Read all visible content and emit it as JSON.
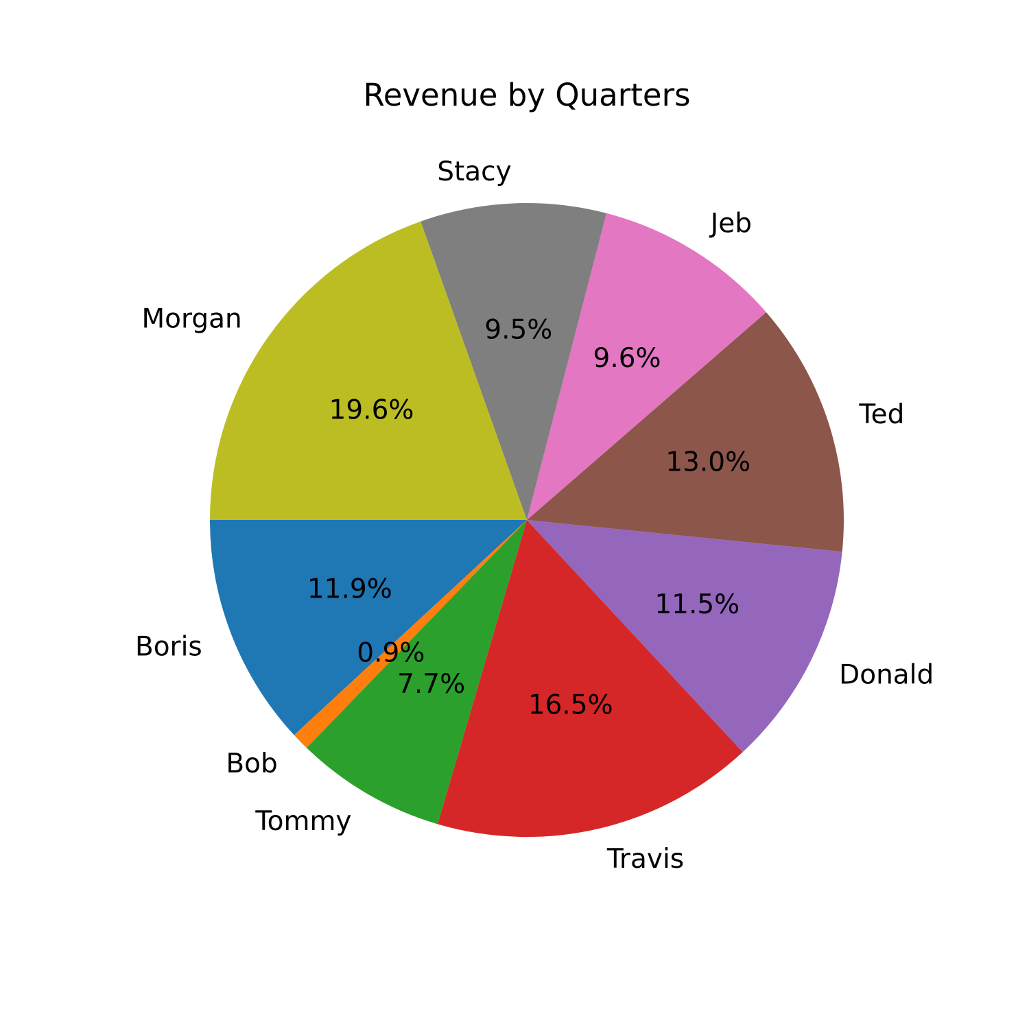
{
  "chart_data": {
    "type": "pie",
    "title": "Revenue by Quarters",
    "labels": [
      "Boris",
      "Bob",
      "Tommy",
      "Travis",
      "Donald",
      "Ted",
      "Jeb",
      "Stacy",
      "Morgan"
    ],
    "values": [
      11.9,
      0.9,
      7.7,
      16.5,
      11.5,
      13.0,
      9.6,
      9.5,
      19.6
    ],
    "value_labels": [
      "11.9%",
      "0.9%",
      "7.7%",
      "16.5%",
      "11.5%",
      "13.0%",
      "9.6%",
      "9.5%",
      "19.6%"
    ],
    "colors": [
      "#1f77b4",
      "#ff7f0e",
      "#2ca02c",
      "#d62728",
      "#9467bd",
      "#8c564b",
      "#e377c2",
      "#7f7f7f",
      "#bcbd22"
    ],
    "start_angle_deg": 180,
    "direction": "counterclockwise",
    "legend": "none"
  }
}
